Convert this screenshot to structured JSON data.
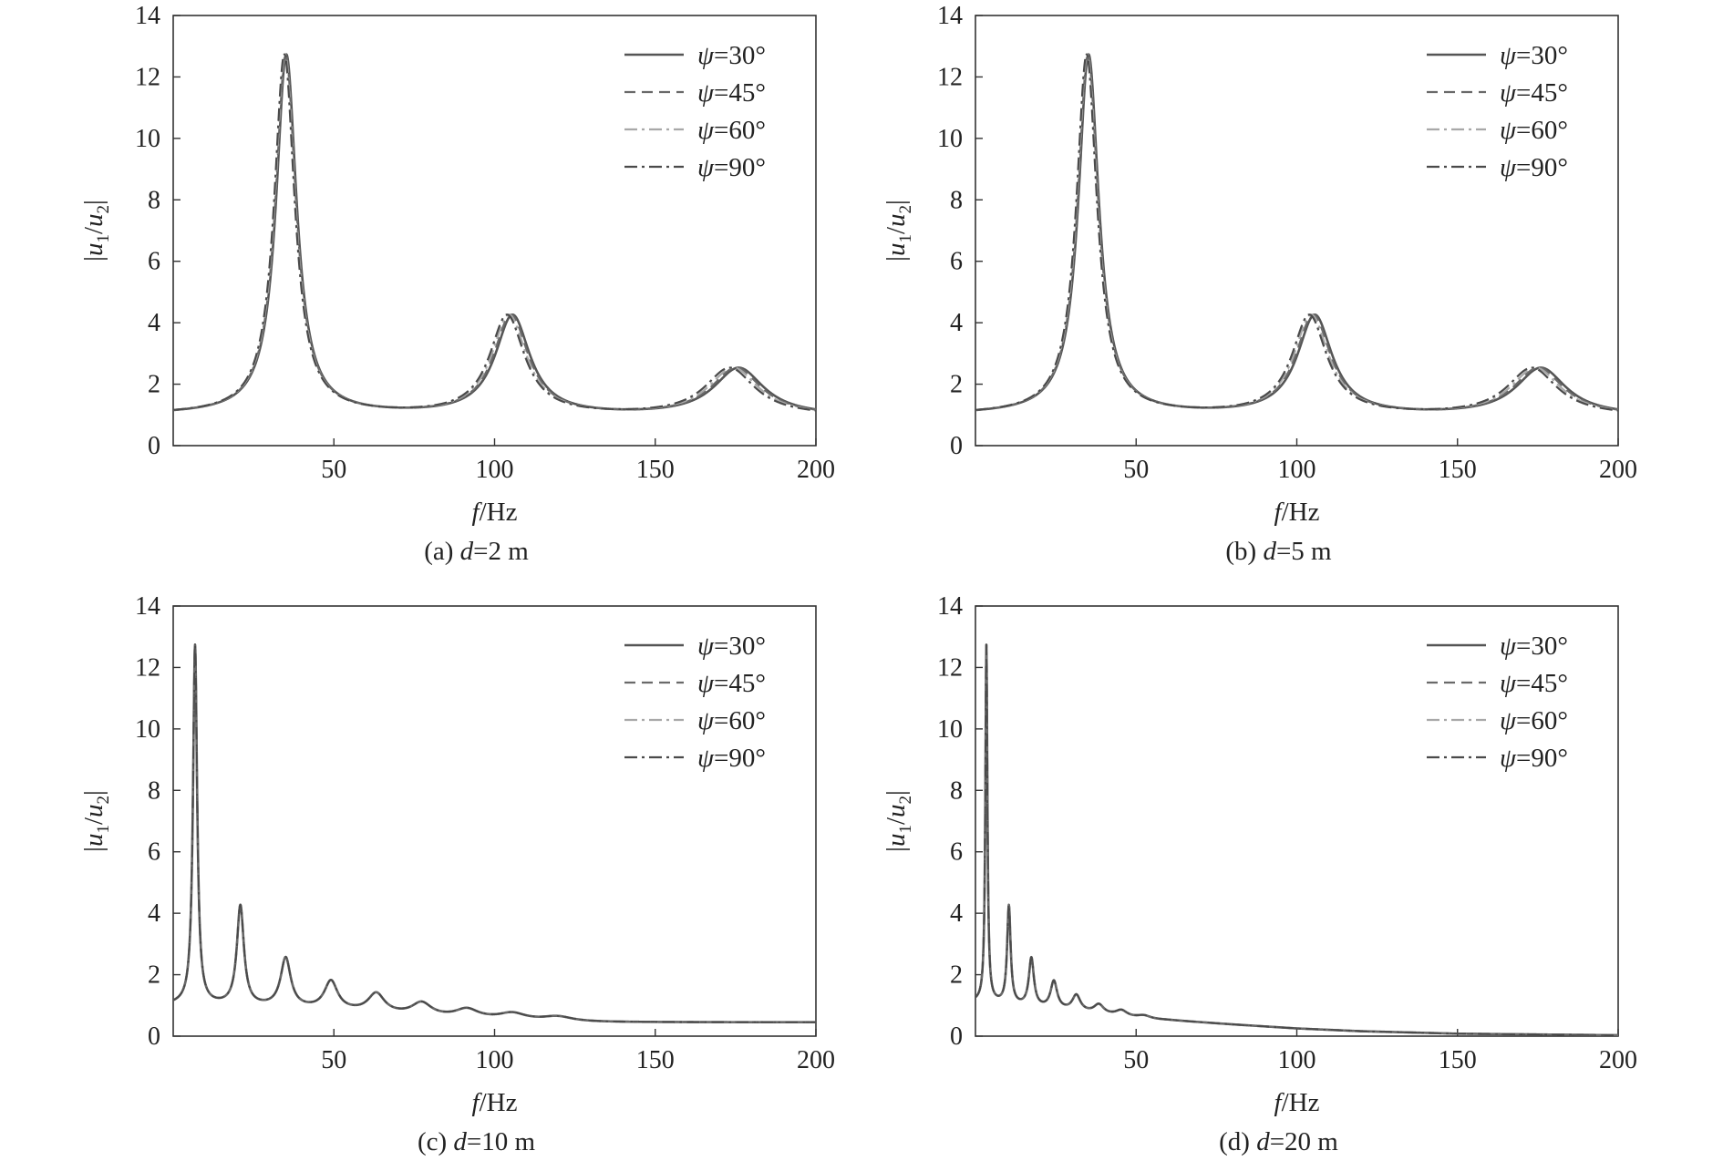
{
  "chart_data": [
    {
      "type": "line",
      "caption": "(a) d=2 m",
      "xlabel": "f/Hz",
      "ylabel": "|u1/u2|",
      "xlim": [
        0,
        200
      ],
      "ylim": [
        0,
        14
      ],
      "xticks": [
        50,
        100,
        150,
        200
      ],
      "yticks": [
        0,
        2,
        4,
        6,
        8,
        10,
        12,
        14
      ],
      "legend": {
        "placement": "top-right"
      },
      "grid": false,
      "resonance": {
        "fundamental_hz": 35.2,
        "gap_hz": 70.4,
        "peak_values": [
          12.7,
          4.2,
          2.5
        ],
        "baseline": [
          1.0,
          0.95,
          0.95
        ]
      },
      "series": [
        {
          "name": "ψ=30°",
          "style": "solid",
          "peak_hz": [
            35.2,
            105.6,
            176.0
          ]
        },
        {
          "name": "ψ=45°",
          "style": "dashed",
          "peak_hz": [
            35.0,
            105.1,
            175.2
          ]
        },
        {
          "name": "ψ=60°",
          "style": "dashdot-light",
          "peak_hz": [
            34.8,
            104.5,
            174.3
          ]
        },
        {
          "name": "ψ=90°",
          "style": "dashdot",
          "peak_hz": [
            34.6,
            103.9,
            173.2
          ]
        }
      ]
    },
    {
      "type": "line",
      "caption": "(b) d=5 m",
      "xlabel": "f/Hz",
      "ylabel": "|u1/u2|",
      "xlim": [
        0,
        200
      ],
      "ylim": [
        0,
        14
      ],
      "xticks": [
        50,
        100,
        150,
        200
      ],
      "yticks": [
        0,
        2,
        4,
        6,
        8,
        10,
        12,
        14
      ],
      "legend": {
        "placement": "top-right"
      },
      "grid": false,
      "resonance": {
        "fundamental_hz": 35.2,
        "gap_hz": 70.4,
        "peak_values": [
          12.7,
          4.2,
          2.5
        ],
        "baseline": [
          1.0,
          0.95,
          0.95
        ]
      },
      "series": [
        {
          "name": "ψ=30°",
          "style": "solid",
          "peak_hz": [
            35.2,
            105.6,
            176.0
          ]
        },
        {
          "name": "ψ=45°",
          "style": "dashed",
          "peak_hz": [
            35.0,
            105.1,
            175.2
          ]
        },
        {
          "name": "ψ=60°",
          "style": "dashdot-light",
          "peak_hz": [
            34.8,
            104.5,
            174.3
          ]
        },
        {
          "name": "ψ=90°",
          "style": "dashdot",
          "peak_hz": [
            34.6,
            103.9,
            173.2
          ]
        }
      ]
    },
    {
      "type": "line",
      "caption": "(c) d=10 m",
      "xlabel": "f/Hz",
      "ylabel": "|u1/u2|",
      "xlim": [
        0,
        200
      ],
      "ylim": [
        0,
        14
      ],
      "xticks": [
        50,
        100,
        150,
        200
      ],
      "yticks": [
        0,
        2,
        4,
        6,
        8,
        10,
        12,
        14
      ],
      "legend": {
        "placement": "top-right"
      },
      "grid": false,
      "resonance": {
        "fundamental_hz": 6.8,
        "gap_hz": 14.1,
        "peak_values": [
          12.7,
          4.2,
          2.5,
          1.75,
          1.35,
          1.05,
          0.85,
          0.72,
          0.62
        ],
        "baseline": [
          1.0,
          0.95,
          0.9,
          0.82,
          0.72,
          0.62,
          0.55,
          0.5,
          0.45
        ]
      },
      "series": [
        {
          "name": "ψ=30°",
          "style": "solid",
          "peak_hz": [
            6.8,
            20.9,
            35.0,
            49.1,
            63.2,
            77.3,
            91.4,
            105.5,
            119.6
          ]
        },
        {
          "name": "ψ=45°",
          "style": "dashed",
          "peak_hz": [
            6.8,
            20.9,
            35.0,
            49.1,
            63.2,
            77.3,
            91.4,
            105.5,
            119.6
          ]
        },
        {
          "name": "ψ=60°",
          "style": "dashdot-light",
          "peak_hz": [
            6.8,
            20.9,
            35.0,
            49.1,
            63.2,
            77.3,
            91.4,
            105.5,
            119.6
          ]
        },
        {
          "name": "ψ=90°",
          "style": "dashdot",
          "peak_hz": [
            6.8,
            20.9,
            35.0,
            49.1,
            63.2,
            77.3,
            91.4,
            105.5,
            119.6
          ]
        }
      ]
    },
    {
      "type": "line",
      "caption": "(d) d=20 m",
      "xlabel": "f/Hz",
      "ylabel": "|u1/u2|",
      "xlim": [
        0,
        200
      ],
      "ylim": [
        0,
        14
      ],
      "xticks": [
        50,
        100,
        150,
        200
      ],
      "yticks": [
        0,
        2,
        4,
        6,
        8,
        10,
        12,
        14
      ],
      "legend": {
        "placement": "top-right"
      },
      "grid": false,
      "resonance": {
        "fundamental_hz": 3.4,
        "gap_hz": 7.0,
        "peak_values": [
          12.7,
          4.2,
          2.5,
          1.75,
          1.3,
          1.0,
          0.82,
          0.66
        ],
        "baseline": [
          1.1,
          1.0,
          0.92,
          0.85,
          0.78,
          0.7,
          0.62,
          0.55
        ]
      },
      "series": [
        {
          "name": "ψ=30°",
          "style": "solid",
          "peak_hz": [
            3.4,
            10.4,
            17.4,
            24.4,
            31.4,
            38.4,
            45.4,
            52.4
          ]
        },
        {
          "name": "ψ=45°",
          "style": "dashed",
          "peak_hz": [
            3.4,
            10.4,
            17.4,
            24.4,
            31.4,
            38.4,
            45.4,
            52.4
          ]
        },
        {
          "name": "ψ=60°",
          "style": "dashdot-light",
          "peak_hz": [
            3.4,
            10.4,
            17.4,
            24.4,
            31.4,
            38.4,
            45.4,
            52.4
          ]
        },
        {
          "name": "ψ=90°",
          "style": "dashdot",
          "peak_hz": [
            3.4,
            10.4,
            17.4,
            24.4,
            31.4,
            38.4,
            45.4,
            52.4
          ]
        }
      ],
      "tail": {
        "f_hz": [
          60,
          80,
          100,
          120,
          150,
          200
        ],
        "value": [
          0.52,
          0.38,
          0.25,
          0.16,
          0.08,
          0.03
        ]
      }
    }
  ]
}
